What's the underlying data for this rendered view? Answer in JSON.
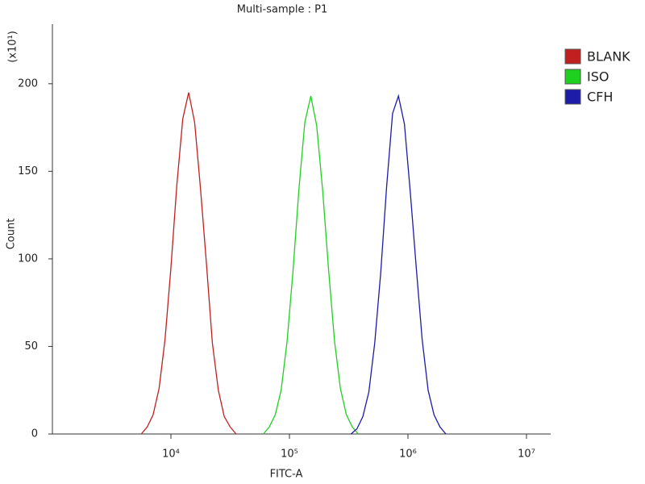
{
  "chart_data": {
    "type": "line",
    "title": "Multi-sample : P1",
    "x_label": "FITC-A",
    "y_label": "Count",
    "y_multiplier": "(x10¹)",
    "x_log": true,
    "xlim": [
      1000,
      16000000
    ],
    "xticks": [
      {
        "value": 10000,
        "label": "10⁴"
      },
      {
        "value": 100000,
        "label": "10⁵"
      },
      {
        "value": 1000000,
        "label": "10⁶"
      },
      {
        "value": 10000000,
        "label": "10⁷"
      }
    ],
    "ylim": [
      0,
      234
    ],
    "yticks": [
      0,
      50,
      100,
      150,
      200
    ],
    "legend": "right",
    "series": [
      {
        "name": "BLANK",
        "color": "#c02020",
        "x": [
          5623,
          6310,
          7079,
          7943,
          8913,
          10000,
          11220,
          12589,
          14125,
          15849,
          17783,
          19953,
          22387,
          25119,
          28184,
          31623,
          35481
        ],
        "values": [
          0,
          4,
          11,
          26,
          54,
          95,
          142,
          180,
          195,
          178,
          140,
          97,
          52,
          25,
          10,
          4,
          0
        ]
      },
      {
        "name": "ISO",
        "color": "#20d020",
        "x": [
          60256,
          67608,
          75858,
          85114,
          95499,
          107152,
          120226,
          134896,
          151356,
          169824,
          190546,
          213796,
          239883,
          269153,
          301995,
          338844,
          380189
        ],
        "values": [
          0,
          4,
          11,
          25,
          53,
          93,
          140,
          178,
          193,
          176,
          139,
          94,
          53,
          26,
          11,
          4,
          0
        ]
      },
      {
        "name": "CFH",
        "color": "#1c1ca8",
        "x": [
          331131,
          371535,
          416869,
          467735,
          524807,
          588844,
          660693,
          741310,
          831764,
          933254,
          1047129,
          1174898,
          1318257,
          1479108,
          1659587,
          1862087,
          2089296
        ],
        "values": [
          0,
          3,
          10,
          24,
          52,
          92,
          141,
          183,
          193,
          177,
          138,
          95,
          54,
          25,
          11,
          4,
          0
        ]
      }
    ]
  }
}
